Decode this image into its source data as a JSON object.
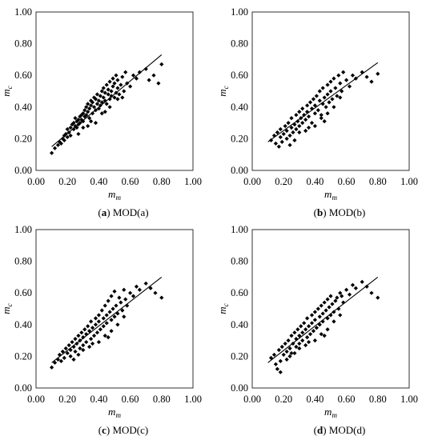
{
  "chart_data": [
    {
      "type": "scatter",
      "caption_letter": "a",
      "caption_text": "MOD(a)",
      "xlabel": "m",
      "xlabel_sub": "m",
      "ylabel": "m",
      "ylabel_sub": "c",
      "xlim": [
        0,
        1
      ],
      "ylim": [
        0,
        1
      ],
      "x_ticks": [
        "0.00",
        "0.20",
        "0.40",
        "0.60",
        "0.80",
        "1.00"
      ],
      "y_ticks": [
        "0.00",
        "0.20",
        "0.40",
        "0.60",
        "0.80",
        "1.00"
      ],
      "grid": false,
      "trendline": {
        "x": [
          0.1,
          0.8
        ],
        "y": [
          0.15,
          0.73
        ]
      },
      "x": [
        0.1,
        0.12,
        0.14,
        0.15,
        0.16,
        0.17,
        0.18,
        0.18,
        0.19,
        0.2,
        0.2,
        0.21,
        0.22,
        0.22,
        0.23,
        0.24,
        0.24,
        0.25,
        0.25,
        0.26,
        0.26,
        0.27,
        0.27,
        0.28,
        0.28,
        0.29,
        0.29,
        0.3,
        0.3,
        0.31,
        0.31,
        0.32,
        0.32,
        0.33,
        0.33,
        0.34,
        0.34,
        0.35,
        0.35,
        0.36,
        0.36,
        0.37,
        0.37,
        0.38,
        0.38,
        0.39,
        0.39,
        0.4,
        0.4,
        0.41,
        0.41,
        0.42,
        0.42,
        0.43,
        0.43,
        0.44,
        0.44,
        0.45,
        0.45,
        0.46,
        0.46,
        0.47,
        0.47,
        0.48,
        0.48,
        0.49,
        0.49,
        0.5,
        0.5,
        0.51,
        0.51,
        0.52,
        0.52,
        0.53,
        0.54,
        0.55,
        0.56,
        0.57,
        0.58,
        0.6,
        0.62,
        0.64,
        0.66,
        0.7,
        0.72,
        0.75,
        0.78,
        0.8,
        0.3,
        0.35,
        0.42,
        0.47,
        0.52,
        0.38,
        0.44,
        0.55,
        0.33,
        0.27
      ],
      "y": [
        0.11,
        0.14,
        0.16,
        0.18,
        0.17,
        0.2,
        0.22,
        0.19,
        0.23,
        0.21,
        0.26,
        0.24,
        0.27,
        0.22,
        0.29,
        0.26,
        0.3,
        0.28,
        0.33,
        0.27,
        0.31,
        0.32,
        0.29,
        0.34,
        0.3,
        0.35,
        0.32,
        0.36,
        0.31,
        0.38,
        0.34,
        0.4,
        0.35,
        0.37,
        0.42,
        0.39,
        0.33,
        0.41,
        0.44,
        0.36,
        0.43,
        0.4,
        0.46,
        0.38,
        0.45,
        0.42,
        0.48,
        0.39,
        0.44,
        0.47,
        0.41,
        0.5,
        0.43,
        0.46,
        0.52,
        0.44,
        0.49,
        0.54,
        0.42,
        0.48,
        0.51,
        0.45,
        0.56,
        0.5,
        0.47,
        0.53,
        0.58,
        0.46,
        0.55,
        0.49,
        0.6,
        0.52,
        0.57,
        0.48,
        0.54,
        0.59,
        0.5,
        0.62,
        0.55,
        0.53,
        0.6,
        0.58,
        0.62,
        0.64,
        0.57,
        0.6,
        0.55,
        0.67,
        0.27,
        0.31,
        0.36,
        0.4,
        0.45,
        0.3,
        0.37,
        0.46,
        0.28,
        0.23
      ]
    },
    {
      "type": "scatter",
      "caption_letter": "b",
      "caption_text": "MOD(b)",
      "xlabel": "m",
      "xlabel_sub": "m",
      "ylabel": "m",
      "ylabel_sub": "c",
      "xlim": [
        0,
        1
      ],
      "ylim": [
        0,
        1
      ],
      "x_ticks": [
        "0.00",
        "0.20",
        "0.40",
        "0.60",
        "0.80",
        "1.00"
      ],
      "y_ticks": [
        "0.00",
        "0.20",
        "0.40",
        "0.60",
        "0.80",
        "1.00"
      ],
      "grid": false,
      "trendline": {
        "x": [
          0.1,
          0.8
        ],
        "y": [
          0.18,
          0.68
        ]
      },
      "x": [
        0.12,
        0.14,
        0.15,
        0.16,
        0.17,
        0.18,
        0.18,
        0.19,
        0.2,
        0.21,
        0.22,
        0.22,
        0.23,
        0.24,
        0.25,
        0.25,
        0.26,
        0.27,
        0.28,
        0.28,
        0.29,
        0.3,
        0.3,
        0.31,
        0.32,
        0.32,
        0.33,
        0.34,
        0.35,
        0.35,
        0.36,
        0.37,
        0.38,
        0.38,
        0.39,
        0.4,
        0.4,
        0.41,
        0.42,
        0.43,
        0.43,
        0.44,
        0.45,
        0.45,
        0.46,
        0.47,
        0.48,
        0.48,
        0.49,
        0.5,
        0.5,
        0.51,
        0.52,
        0.53,
        0.54,
        0.55,
        0.56,
        0.57,
        0.58,
        0.6,
        0.62,
        0.64,
        0.66,
        0.7,
        0.73,
        0.76,
        0.8,
        0.34,
        0.44,
        0.52,
        0.24,
        0.3,
        0.4,
        0.48,
        0.56,
        0.36,
        0.27,
        0.46
      ],
      "y": [
        0.19,
        0.22,
        0.17,
        0.24,
        0.15,
        0.21,
        0.26,
        0.18,
        0.23,
        0.28,
        0.2,
        0.25,
        0.3,
        0.22,
        0.27,
        0.33,
        0.24,
        0.29,
        0.35,
        0.26,
        0.31,
        0.28,
        0.37,
        0.33,
        0.3,
        0.39,
        0.35,
        0.32,
        0.41,
        0.37,
        0.34,
        0.43,
        0.39,
        0.3,
        0.45,
        0.36,
        0.41,
        0.47,
        0.38,
        0.44,
        0.5,
        0.35,
        0.42,
        0.52,
        0.46,
        0.4,
        0.54,
        0.48,
        0.43,
        0.56,
        0.5,
        0.45,
        0.58,
        0.52,
        0.47,
        0.6,
        0.55,
        0.5,
        0.62,
        0.57,
        0.53,
        0.6,
        0.58,
        0.62,
        0.59,
        0.56,
        0.61,
        0.25,
        0.33,
        0.4,
        0.16,
        0.24,
        0.28,
        0.36,
        0.46,
        0.27,
        0.19,
        0.31
      ]
    },
    {
      "type": "scatter",
      "caption_letter": "c",
      "caption_text": "MOD(c)",
      "xlabel": "m",
      "xlabel_sub": "m",
      "ylabel": "m",
      "ylabel_sub": "c",
      "xlim": [
        0,
        1
      ],
      "ylim": [
        0,
        1
      ],
      "x_ticks": [
        "0.00",
        "0.20",
        "0.40",
        "0.60",
        "0.80",
        "1.00"
      ],
      "y_ticks": [
        "0.00",
        "0.20",
        "0.40",
        "0.60",
        "0.80",
        "1.00"
      ],
      "grid": false,
      "trendline": {
        "x": [
          0.1,
          0.8
        ],
        "y": [
          0.16,
          0.7
        ]
      },
      "x": [
        0.1,
        0.12,
        0.14,
        0.15,
        0.16,
        0.17,
        0.18,
        0.19,
        0.2,
        0.21,
        0.22,
        0.22,
        0.23,
        0.24,
        0.25,
        0.25,
        0.26,
        0.27,
        0.28,
        0.28,
        0.29,
        0.3,
        0.3,
        0.31,
        0.32,
        0.32,
        0.33,
        0.34,
        0.35,
        0.35,
        0.36,
        0.37,
        0.38,
        0.38,
        0.39,
        0.4,
        0.4,
        0.41,
        0.42,
        0.43,
        0.43,
        0.44,
        0.45,
        0.45,
        0.46,
        0.47,
        0.48,
        0.48,
        0.49,
        0.5,
        0.5,
        0.51,
        0.52,
        0.53,
        0.54,
        0.55,
        0.56,
        0.57,
        0.58,
        0.6,
        0.62,
        0.64,
        0.66,
        0.7,
        0.73,
        0.76,
        0.8,
        0.34,
        0.44,
        0.52,
        0.24,
        0.3,
        0.4,
        0.48,
        0.56,
        0.36,
        0.27,
        0.46
      ],
      "y": [
        0.13,
        0.16,
        0.18,
        0.21,
        0.17,
        0.23,
        0.19,
        0.25,
        0.22,
        0.27,
        0.24,
        0.2,
        0.29,
        0.26,
        0.31,
        0.23,
        0.28,
        0.33,
        0.3,
        0.25,
        0.35,
        0.32,
        0.27,
        0.37,
        0.34,
        0.29,
        0.39,
        0.36,
        0.31,
        0.42,
        0.38,
        0.33,
        0.44,
        0.4,
        0.35,
        0.46,
        0.42,
        0.37,
        0.49,
        0.44,
        0.39,
        0.52,
        0.46,
        0.41,
        0.55,
        0.48,
        0.43,
        0.58,
        0.5,
        0.45,
        0.61,
        0.52,
        0.47,
        0.57,
        0.54,
        0.49,
        0.62,
        0.56,
        0.52,
        0.6,
        0.58,
        0.64,
        0.62,
        0.66,
        0.63,
        0.6,
        0.57,
        0.26,
        0.33,
        0.4,
        0.18,
        0.24,
        0.29,
        0.36,
        0.45,
        0.28,
        0.21,
        0.32
      ]
    },
    {
      "type": "scatter",
      "caption_letter": "d",
      "caption_text": "MOD(d)",
      "xlabel": "m",
      "xlabel_sub": "m",
      "ylabel": "m",
      "ylabel_sub": "c",
      "xlim": [
        0,
        1
      ],
      "ylim": [
        0,
        1
      ],
      "x_ticks": [
        "0.00",
        "0.20",
        "0.40",
        "0.60",
        "0.80",
        "1.00"
      ],
      "y_ticks": [
        "0.00",
        "0.20",
        "0.40",
        "0.60",
        "0.80",
        "1.00"
      ],
      "grid": false,
      "trendline": {
        "x": [
          0.1,
          0.8
        ],
        "y": [
          0.16,
          0.7
        ]
      },
      "x": [
        0.12,
        0.14,
        0.15,
        0.16,
        0.17,
        0.18,
        0.18,
        0.19,
        0.2,
        0.21,
        0.22,
        0.22,
        0.23,
        0.24,
        0.25,
        0.25,
        0.26,
        0.27,
        0.28,
        0.28,
        0.29,
        0.3,
        0.3,
        0.31,
        0.32,
        0.32,
        0.33,
        0.34,
        0.35,
        0.35,
        0.36,
        0.37,
        0.38,
        0.38,
        0.39,
        0.4,
        0.4,
        0.41,
        0.42,
        0.43,
        0.43,
        0.44,
        0.45,
        0.45,
        0.46,
        0.47,
        0.48,
        0.48,
        0.49,
        0.5,
        0.5,
        0.51,
        0.52,
        0.53,
        0.54,
        0.55,
        0.56,
        0.57,
        0.58,
        0.6,
        0.62,
        0.64,
        0.66,
        0.7,
        0.73,
        0.76,
        0.8,
        0.34,
        0.44,
        0.52,
        0.24,
        0.3,
        0.4,
        0.48,
        0.56,
        0.36,
        0.27,
        0.46
      ],
      "y": [
        0.19,
        0.21,
        0.15,
        0.12,
        0.24,
        0.17,
        0.1,
        0.26,
        0.21,
        0.28,
        0.23,
        0.18,
        0.3,
        0.25,
        0.33,
        0.22,
        0.28,
        0.35,
        0.31,
        0.26,
        0.37,
        0.33,
        0.28,
        0.39,
        0.35,
        0.3,
        0.41,
        0.37,
        0.32,
        0.44,
        0.39,
        0.34,
        0.46,
        0.41,
        0.36,
        0.48,
        0.43,
        0.38,
        0.5,
        0.45,
        0.4,
        0.52,
        0.47,
        0.42,
        0.54,
        0.49,
        0.44,
        0.56,
        0.51,
        0.46,
        0.58,
        0.53,
        0.48,
        0.55,
        0.57,
        0.5,
        0.6,
        0.58,
        0.54,
        0.62,
        0.59,
        0.65,
        0.63,
        0.67,
        0.64,
        0.6,
        0.57,
        0.27,
        0.34,
        0.42,
        0.2,
        0.25,
        0.3,
        0.37,
        0.46,
        0.29,
        0.22,
        0.33
      ]
    }
  ]
}
